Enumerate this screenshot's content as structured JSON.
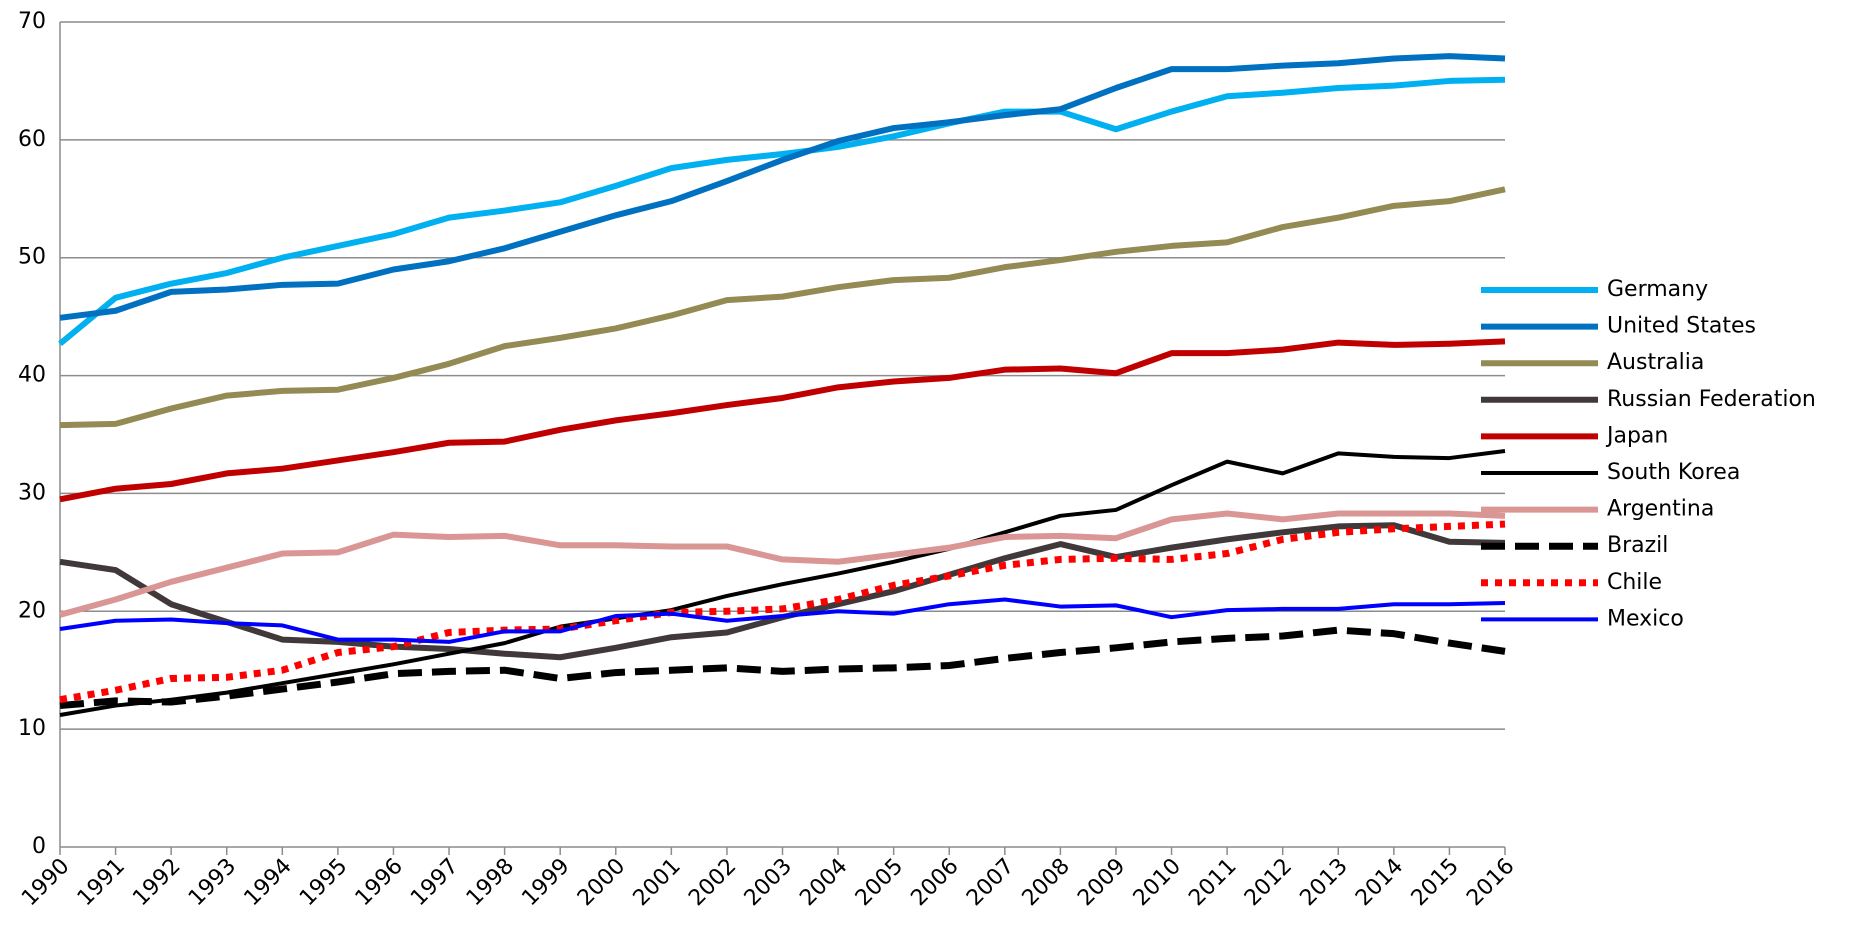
{
  "chart_data": {
    "type": "line",
    "x": [
      1990,
      1991,
      1992,
      1993,
      1994,
      1995,
      1996,
      1997,
      1998,
      1999,
      2000,
      2001,
      2002,
      2003,
      2004,
      2005,
      2006,
      2007,
      2008,
      2009,
      2010,
      2011,
      2012,
      2013,
      2014,
      2015,
      2016
    ],
    "xlim": [
      1990,
      2016
    ],
    "xticks": [
      1990,
      1991,
      1992,
      1993,
      1994,
      1995,
      1996,
      1997,
      1998,
      1999,
      2000,
      2001,
      2002,
      2003,
      2004,
      2005,
      2006,
      2007,
      2008,
      2009,
      2010,
      2011,
      2012,
      2013,
      2014,
      2015,
      2016
    ],
    "ylim": [
      0,
      70
    ],
    "yticks": [
      0,
      10,
      20,
      30,
      40,
      50,
      60,
      70
    ],
    "grid": true,
    "legend": "right",
    "series": [
      {
        "name": "Germany",
        "color": "#00b0f0",
        "style": "solid",
        "values": [
          42.7,
          46.6,
          47.8,
          48.7,
          50.0,
          51.0,
          52.0,
          53.4,
          54.0,
          54.7,
          56.1,
          57.6,
          58.3,
          58.8,
          59.4,
          60.3,
          61.4,
          62.4,
          62.4,
          60.9,
          62.4,
          63.7,
          64.0,
          64.4,
          64.6,
          65.0,
          65.1
        ]
      },
      {
        "name": "United States",
        "color": "#0070c0",
        "style": "solid",
        "values": [
          44.9,
          45.5,
          47.1,
          47.3,
          47.7,
          47.8,
          49.0,
          49.7,
          50.8,
          52.2,
          53.6,
          54.8,
          56.5,
          58.3,
          59.9,
          61.0,
          61.5,
          62.1,
          62.6,
          64.4,
          66.0,
          66.0,
          66.3,
          66.5,
          66.9,
          67.1,
          66.9
        ]
      },
      {
        "name": "Australia",
        "color": "#948a54",
        "style": "solid",
        "values": [
          35.8,
          35.9,
          37.2,
          38.3,
          38.7,
          38.8,
          39.8,
          41.0,
          42.5,
          43.2,
          44.0,
          45.1,
          46.4,
          46.7,
          47.5,
          48.1,
          48.3,
          49.2,
          49.8,
          50.5,
          51.0,
          51.3,
          52.6,
          53.4,
          54.4,
          54.8,
          55.8
        ]
      },
      {
        "name": "Russian Federation",
        "color": "#403839",
        "style": "solid",
        "values": [
          24.2,
          23.5,
          20.6,
          19.1,
          17.6,
          17.4,
          17.0,
          16.8,
          16.4,
          16.1,
          16.9,
          17.8,
          18.2,
          19.5,
          20.6,
          21.7,
          23.1,
          24.5,
          25.7,
          24.6,
          25.4,
          26.1,
          26.7,
          27.2,
          27.3,
          25.9,
          25.8
        ]
      },
      {
        "name": "Japan",
        "color": "#c00000",
        "style": "solid",
        "values": [
          29.5,
          30.4,
          30.8,
          31.7,
          32.1,
          32.8,
          33.5,
          34.3,
          34.4,
          35.4,
          36.2,
          36.8,
          37.5,
          38.1,
          39.0,
          39.5,
          39.8,
          40.5,
          40.6,
          40.2,
          41.9,
          41.9,
          42.2,
          42.8,
          42.6,
          42.7,
          42.9
        ]
      },
      {
        "name": "South Korea",
        "color": "#000000",
        "style": "thin",
        "values": [
          11.2,
          12.0,
          12.5,
          13.1,
          13.9,
          14.7,
          15.5,
          16.4,
          17.3,
          18.7,
          19.4,
          20.1,
          21.3,
          22.3,
          23.2,
          24.2,
          25.3,
          26.7,
          28.1,
          28.6,
          30.7,
          32.7,
          31.7,
          33.4,
          33.1,
          33.0,
          33.6
        ]
      },
      {
        "name": "Argentina",
        "color": "#d99694",
        "style": "solid",
        "values": [
          19.7,
          21.0,
          22.5,
          23.7,
          24.9,
          25.0,
          26.5,
          26.3,
          26.4,
          25.6,
          25.6,
          25.5,
          25.5,
          24.4,
          24.2,
          24.8,
          25.4,
          26.3,
          26.4,
          26.2,
          27.8,
          28.3,
          27.8,
          28.3,
          28.3,
          28.3,
          28.1
        ]
      },
      {
        "name": "Brazil",
        "color": "#000000",
        "style": "dashed",
        "values": [
          12.0,
          12.4,
          12.3,
          12.8,
          13.4,
          14.0,
          14.7,
          14.9,
          15.0,
          14.3,
          14.8,
          15.0,
          15.2,
          14.9,
          15.1,
          15.2,
          15.4,
          16.0,
          16.5,
          16.9,
          17.4,
          17.7,
          17.9,
          18.4,
          18.1,
          17.3,
          16.6
        ]
      },
      {
        "name": "Chile",
        "color": "#ff0000",
        "style": "dotted",
        "values": [
          12.5,
          13.3,
          14.3,
          14.4,
          15.0,
          16.5,
          17.0,
          18.2,
          18.4,
          18.5,
          19.2,
          19.9,
          20.0,
          20.2,
          21.0,
          22.2,
          23.0,
          23.9,
          24.4,
          24.5,
          24.4,
          24.9,
          26.1,
          26.7,
          27.0,
          27.2,
          27.4
        ]
      },
      {
        "name": "Mexico",
        "color": "#0000ff",
        "style": "thin",
        "values": [
          18.5,
          19.2,
          19.3,
          19.0,
          18.8,
          17.6,
          17.6,
          17.4,
          18.3,
          18.3,
          19.6,
          19.8,
          19.2,
          19.6,
          20.0,
          19.8,
          20.6,
          21.0,
          20.4,
          20.5,
          19.5,
          20.1,
          20.2,
          20.2,
          20.6,
          20.6,
          20.7
        ]
      }
    ]
  }
}
